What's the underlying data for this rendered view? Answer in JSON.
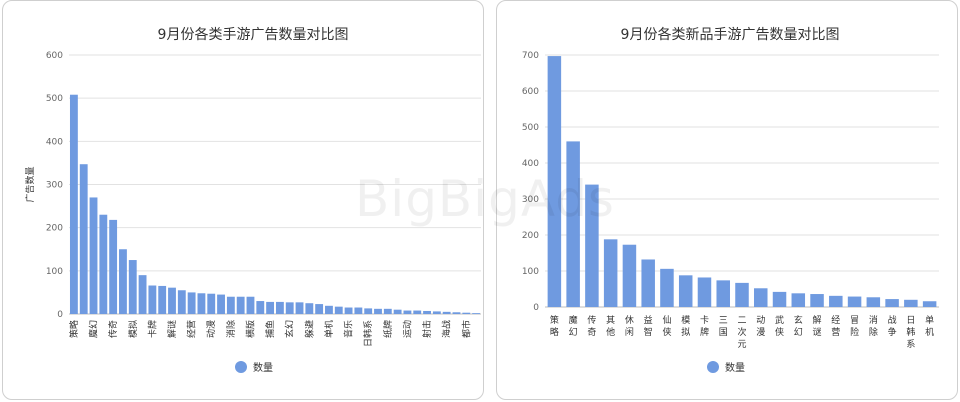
{
  "watermark": "BigBigAds",
  "chart_data": [
    {
      "type": "bar",
      "title": "9月份各类手游广告数量对比图",
      "ylabel": "广告数量",
      "xlabel": "",
      "ylim": [
        0,
        600
      ],
      "yticks": [
        0,
        100,
        200,
        300,
        400,
        500,
        600
      ],
      "legend": "bottom-center",
      "color": "#6f9ae0",
      "grid": true,
      "tick_labels": [
        "策略",
        "魔幻",
        "传奇",
        "模拟",
        "卡牌",
        "解谜",
        "经营",
        "动漫",
        "消除",
        "横版",
        "捕鱼",
        "玄幻",
        "躲避",
        "单机",
        "音乐",
        "日韩系",
        "纸牌",
        "运动",
        "射击",
        "海战",
        "都市"
      ],
      "tick_every": 2,
      "categories": [
        "策略",
        "",
        "魔幻",
        "",
        "传奇",
        "",
        "模拟",
        "",
        "卡牌",
        "",
        "解谜",
        "",
        "经营",
        "",
        "动漫",
        "",
        "消除",
        "",
        "横版",
        "",
        "捕鱼",
        "",
        "玄幻",
        "",
        "躲避",
        "",
        "单机",
        "",
        "音乐",
        "",
        "日韩系",
        "",
        "纸牌",
        "",
        "运动",
        "",
        "射击",
        "",
        "海战",
        "",
        "都市",
        ""
      ],
      "series": [
        {
          "name": "数量",
          "values": [
            508,
            347,
            270,
            230,
            218,
            150,
            125,
            90,
            66,
            65,
            61,
            55,
            50,
            48,
            47,
            45,
            40,
            40,
            40,
            30,
            28,
            28,
            27,
            27,
            25,
            23,
            19,
            17,
            15,
            15,
            13,
            12,
            12,
            10,
            8,
            8,
            7,
            6,
            5,
            4,
            3,
            2
          ]
        }
      ]
    },
    {
      "type": "bar",
      "title": "9月份各类新品手游广告数量对比图",
      "xlabel": "",
      "ylabel": "",
      "ylim": [
        0,
        700
      ],
      "yticks": [
        0,
        100,
        200,
        300,
        400,
        500,
        600,
        700
      ],
      "legend": "bottom-center",
      "color": "#6f9ae0",
      "grid": true,
      "categories": [
        "策略",
        "魔幻",
        "传奇",
        "其他",
        "休闲",
        "益智",
        "仙侠",
        "模拟",
        "卡牌",
        "三国",
        "二次元",
        "动漫",
        "武侠",
        "玄幻",
        "解谜",
        "经营",
        "冒险",
        "消除",
        "战争",
        "日韩系",
        "单机"
      ],
      "series": [
        {
          "name": "数量",
          "values": [
            697,
            460,
            340,
            188,
            173,
            132,
            106,
            88,
            82,
            74,
            67,
            52,
            42,
            38,
            36,
            31,
            29,
            27,
            22,
            20,
            16
          ]
        }
      ]
    }
  ]
}
